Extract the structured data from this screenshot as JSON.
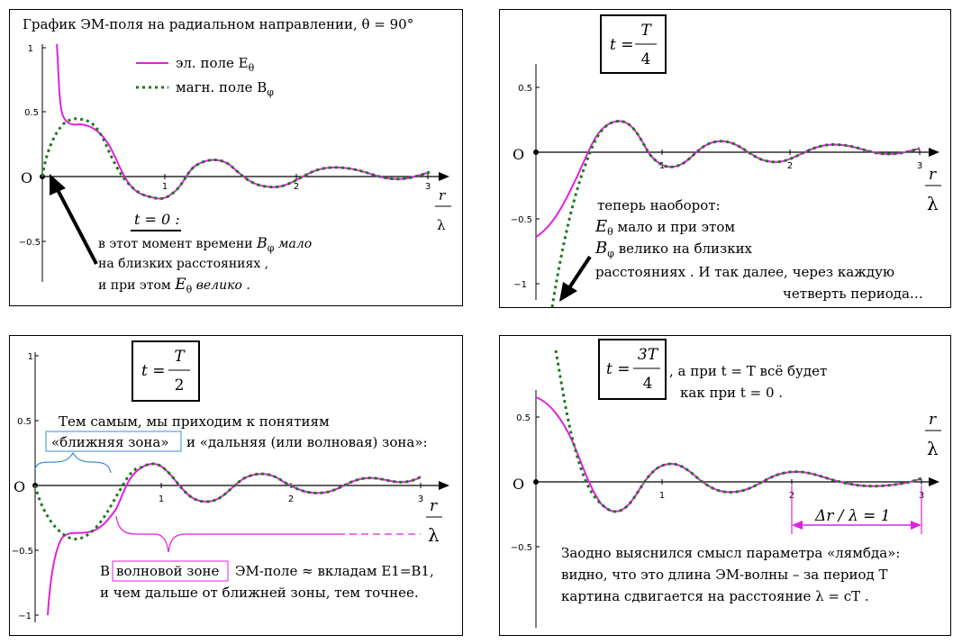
{
  "panels": {
    "p1": {
      "title": "График ЭМ-поля на радиальном направлении,  θ = 90°",
      "legend_e": "эл. поле  E",
      "legend_e_sub": "θ",
      "legend_b": "магн. поле  B",
      "legend_b_sub": "φ",
      "time_label": "t = 0 :",
      "note_line1": "в этот момент времени",
      "note_line1_sym": "B",
      "note_line1_sub": "φ",
      "note_line1_end": "мало",
      "note_line2": "на  близких    расстояниях ,",
      "note_line3": "и  при  этом",
      "note_line3_sym": "E",
      "note_line3_sub": "θ",
      "note_line3_end": "велико ."
    },
    "p2": {
      "time_t": "t =",
      "time_num": "T",
      "time_den": "4",
      "note_line1": "теперь наоборот:",
      "note_line2_sym": "E",
      "note_line2_sub": "θ",
      "note_line2": "мало  и  при  этом",
      "note_line3_sym": "B",
      "note_line3_sub": "φ",
      "note_line3": "велико на близких",
      "note_line4": "расстояниях .   И так далее, через каждую",
      "note_line5": "четверть периода…"
    },
    "p3": {
      "time_t": "t =",
      "time_num": "T",
      "time_den": "2",
      "text_line1": "Тем самым, мы приходим к понятиям",
      "near_zone": "«ближняя зона»",
      "text_line2_rest": "и  «дальняя (или волновая) зона»:",
      "wave_zone": "волновой зоне",
      "text_line3_pre": "В",
      "text_line3_rest": "ЭМ-поле ≈  вкладам E1=B1,",
      "text_line4": "и чем дальше от ближней зоны, тем точнее."
    },
    "p4": {
      "time_t": "t =",
      "time_num": "3T",
      "time_den": "4",
      "side_line1": ", а при  t = T  всё будет",
      "side_line2": "как при  t = 0 .",
      "delta_label": "Δr / λ  =  1",
      "text_line1": "Заодно выяснился смысл параметра «лямбда»:",
      "text_line2": "видно, что это длина ЭМ-волны – за период  T",
      "text_line3": "картина сдвигается на расстояние  λ  =  cT ."
    }
  },
  "axis": {
    "origin_label": "O",
    "x_ticks": [
      "1",
      "2",
      "3"
    ],
    "y_ticks": [
      "1",
      "0.5",
      "−0.5",
      "−1"
    ],
    "r_label": "r",
    "lambda_label": "λ"
  },
  "colors": {
    "e_field": "#e020e0",
    "b_field": "#1a7a1a",
    "near_bracket": "#3a8ed8",
    "wave_bracket": "#e020e0"
  }
}
